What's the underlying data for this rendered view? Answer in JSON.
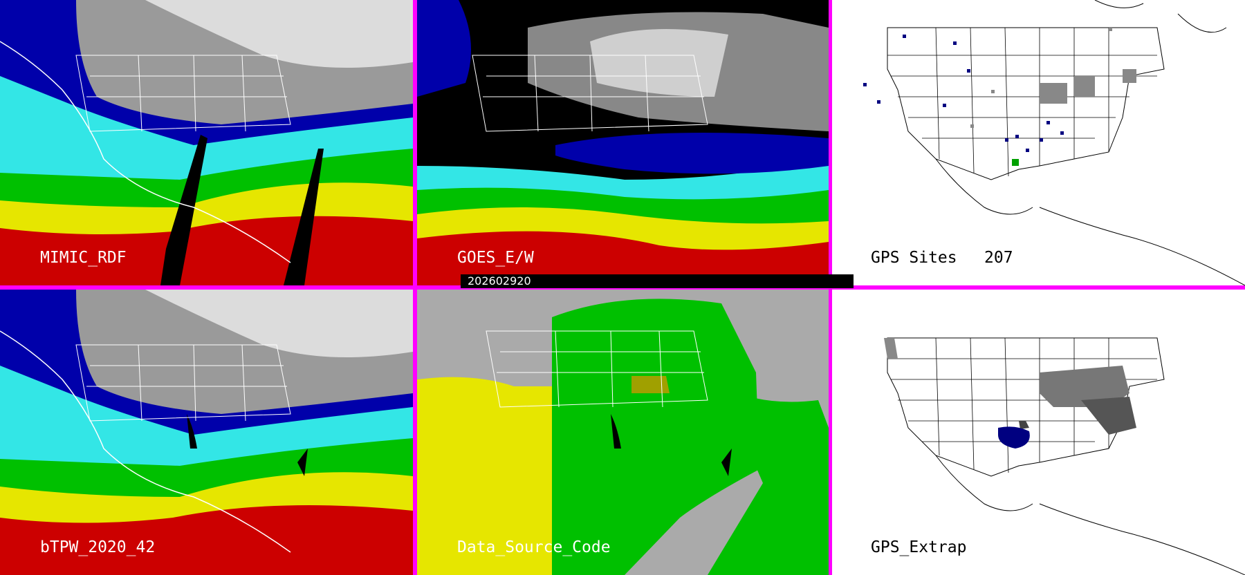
{
  "panels": {
    "mimic": {
      "label": "MIMIC_RDF"
    },
    "goes": {
      "label": "GOES_E/W"
    },
    "gps_sites": {
      "label": "GPS Sites",
      "count": "207"
    },
    "btpw": {
      "label": "bTPW_2020_42"
    },
    "source": {
      "label": "Data_Source_Code"
    },
    "gps_extrap": {
      "label": "GPS_Extrap"
    }
  },
  "timestamp": "202602920",
  "colors": {
    "frame": "#ff00ff",
    "red": "#cc0000",
    "yellow": "#e6e600",
    "green": "#00c000",
    "cyan": "#33e6e6",
    "blue": "#0000aa",
    "grey": "#aaaaaa",
    "white": "#ffffff",
    "black": "#000000"
  }
}
